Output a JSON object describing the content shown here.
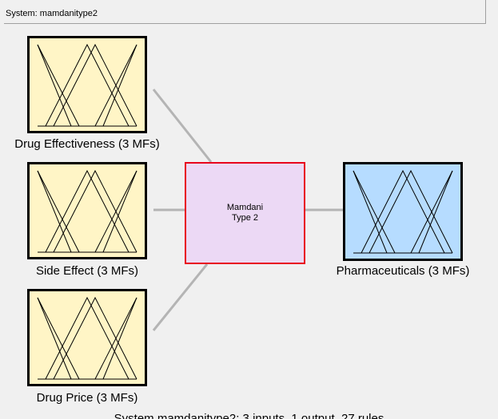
{
  "system": {
    "label": "System: mamdanitype2"
  },
  "inputs": [
    {
      "name": "Drug Effectiveness (3 MFs)",
      "icon": "membership-functions-icon"
    },
    {
      "name": "Side Effect (3 MFs)",
      "icon": "membership-functions-icon"
    },
    {
      "name": "Drug Price (3 MFs)",
      "icon": "membership-functions-icon"
    }
  ],
  "engine": {
    "line1": "Mamdani",
    "line2": "Type 2"
  },
  "output": {
    "name": "Pharmaceuticals  (3 MFs)",
    "icon": "membership-functions-icon"
  },
  "footer": {
    "summary": "System mamdanitype2: 3 inputs, 1 output, 27 rules"
  },
  "colors": {
    "input_fill": "#fff5c6",
    "output_fill": "#b6dcff",
    "engine_fill": "#ecd9f5",
    "engine_border": "#e8001c",
    "connector": "#b4b4b4"
  }
}
